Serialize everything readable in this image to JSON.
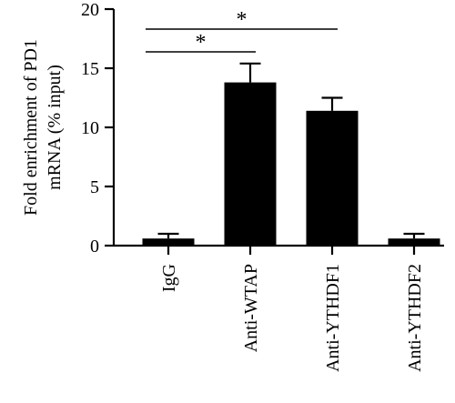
{
  "chart_data": {
    "type": "bar",
    "title": "",
    "xlabel": "",
    "ylabel_lines": [
      "Fold enrichment of PD1",
      "mRNA (% input)"
    ],
    "ylim": [
      0,
      20
    ],
    "yticks": [
      0,
      5,
      10,
      15,
      20
    ],
    "categories": [
      "IgG",
      "Anti-WTAP",
      "Anti-YTHDF1",
      "Anti-YTHDF2"
    ],
    "values": [
      0.6,
      13.8,
      11.4,
      0.6
    ],
    "errors": [
      0.4,
      1.6,
      1.1,
      0.4
    ],
    "bar_color": "#000000",
    "significance": [
      {
        "from": "IgG",
        "to": "Anti-WTAP",
        "label": "*"
      },
      {
        "from": "IgG",
        "to": "Anti-YTHDF1",
        "label": "*"
      }
    ]
  }
}
